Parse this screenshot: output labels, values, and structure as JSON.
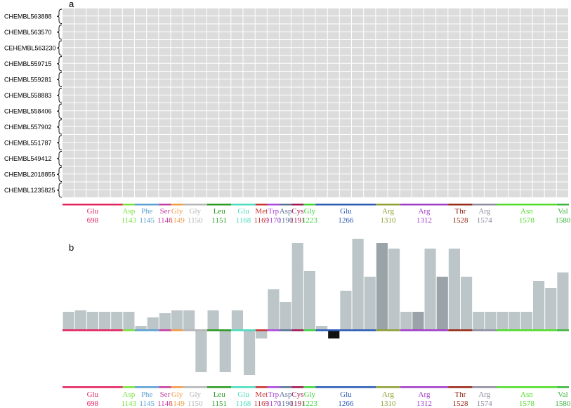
{
  "panel_a_label": "a",
  "panel_b_label": "b",
  "chart_data": [
    {
      "type": "heatmap",
      "panel": "a",
      "molecules": [
        "CHEMBL563888",
        "CHEMBL563570",
        "CEHEMBL563230",
        "CHEMBL559715",
        "CHEMBL559281",
        "CHEMBL558883",
        "CHEMBL558406",
        "CHEMBL557902",
        "CHEMBL551787",
        "CHEMBL549412",
        "CHEMBL2018855",
        "CHEMBL1235825"
      ],
      "rows_per_molecule": 2,
      "columns": 42,
      "cell_color_on": "#111111",
      "cell_color_off": "#dcdcdc",
      "row_bits": [
        "000000000000000000000000000000000000000000",
        "000000000000000000000000000000000000000000",
        "000000000000000000000000000000000000000000",
        "000000000000000000000000000000000000000000",
        "000000000000000000000000000000000000000000",
        "000000000000000000000000000000000000000000",
        "000000000000000000000000000000000000000000",
        "000000000000000000000000000000000000000000",
        "000000000000000000000000000000000000000000",
        "000000000000000000000000000000000000000000",
        "000000000000000000000000000000000000000000",
        "000000000000000000000000000000000000000000",
        "000000000000000000000000000000000000000000",
        "000000000000000000000000000000000000000000",
        "000000000000000000000000000000000000000000",
        "000000000000000000000000000000000000000000",
        "000000000000000000000000000000000000000000",
        "000000000000000000000000000000000000000000",
        "000000000000000000000000000000000000000000",
        "000000000000000000000000000000000000000000",
        "000000000000000000000000000000000000000000",
        "000000000000000000000000000000000000000000",
        "000000000000000000000000000000000000000000",
        "000000000000000000000000000000000000000000"
      ],
      "residue_groups": [
        {
          "name": "Glu",
          "number": "698",
          "color": "#e0245e",
          "start": 0,
          "end": 5
        },
        {
          "name": "Asp",
          "number": "1143",
          "color": "#78e03c",
          "start": 5,
          "end": 6
        },
        {
          "name": "Phe",
          "number": "1145",
          "color": "#5aa0d2",
          "start": 6,
          "end": 8
        },
        {
          "name": "Ser",
          "number": "1146",
          "color": "#c53ca0",
          "start": 8,
          "end": 9
        },
        {
          "name": "Gly",
          "number": "1149",
          "color": "#f09a46",
          "start": 9,
          "end": 10
        },
        {
          "name": "Gly",
          "number": "1150",
          "color": "#b4b4b4",
          "start": 10,
          "end": 12
        },
        {
          "name": "Leu",
          "number": "1151",
          "color": "#2a9a22",
          "start": 12,
          "end": 14
        },
        {
          "name": "Glu",
          "number": "1168",
          "color": "#4adcbe",
          "start": 14,
          "end": 16
        },
        {
          "name": "Met",
          "number": "1169",
          "color": "#c83232",
          "start": 16,
          "end": 17
        },
        {
          "name": "Trp",
          "number": "1170",
          "color": "#aa46dc",
          "start": 17,
          "end": 18
        },
        {
          "name": "Asp",
          "number": "1190",
          "color": "#5a6e96",
          "start": 18,
          "end": 19
        },
        {
          "name": "Cys",
          "number": "1191",
          "color": "#a0144e",
          "start": 19,
          "end": 20
        },
        {
          "name": "Gly",
          "number": "1223",
          "color": "#3cd23c",
          "start": 20,
          "end": 21
        },
        {
          "name": "Glu",
          "number": "1266",
          "color": "#2a5ab4",
          "start": 21,
          "end": 26
        },
        {
          "name": "Arg",
          "number": "1310",
          "color": "#8ca032",
          "start": 26,
          "end": 28
        },
        {
          "name": "Arg",
          "number": "1312",
          "color": "#a03cc8",
          "start": 28,
          "end": 32
        },
        {
          "name": "Thr",
          "number": "1528",
          "color": "#962814",
          "start": 32,
          "end": 34
        },
        {
          "name": "Arg",
          "number": "1574",
          "color": "#8c8ca0",
          "start": 34,
          "end": 36
        },
        {
          "name": "Asn",
          "number": "1578",
          "color": "#50dc28",
          "start": 36,
          "end": 41
        },
        {
          "name": "Val",
          "number": "1580",
          "color": "#3cb43c",
          "start": 41,
          "end": 42
        }
      ]
    },
    {
      "type": "bar",
      "panel": "b",
      "columns": 42,
      "values": [
        1.3,
        1.4,
        1.3,
        1.3,
        1.3,
        1.3,
        0.3,
        0.9,
        1.2,
        1.4,
        1.4,
        -3.0,
        1.4,
        -3.0,
        1.4,
        -3.2,
        -0.6,
        2.9,
        2.0,
        6.2,
        4.2,
        0.3,
        -0.6,
        2.8,
        6.5,
        3.8,
        6.2,
        5.8,
        1.3,
        1.3,
        5.8,
        3.8,
        5.8,
        3.8,
        1.3,
        1.3,
        1.3,
        1.3,
        1.3,
        3.5,
        3.0,
        4.1
      ],
      "bar_color": "#bcc6c9",
      "accent_colors": {
        "Cys1191": "#111111",
        "Arg1312_dark": "#9aa4a8"
      },
      "ylim": [
        -4,
        7
      ],
      "residue_groups_ref": "panel a"
    }
  ]
}
